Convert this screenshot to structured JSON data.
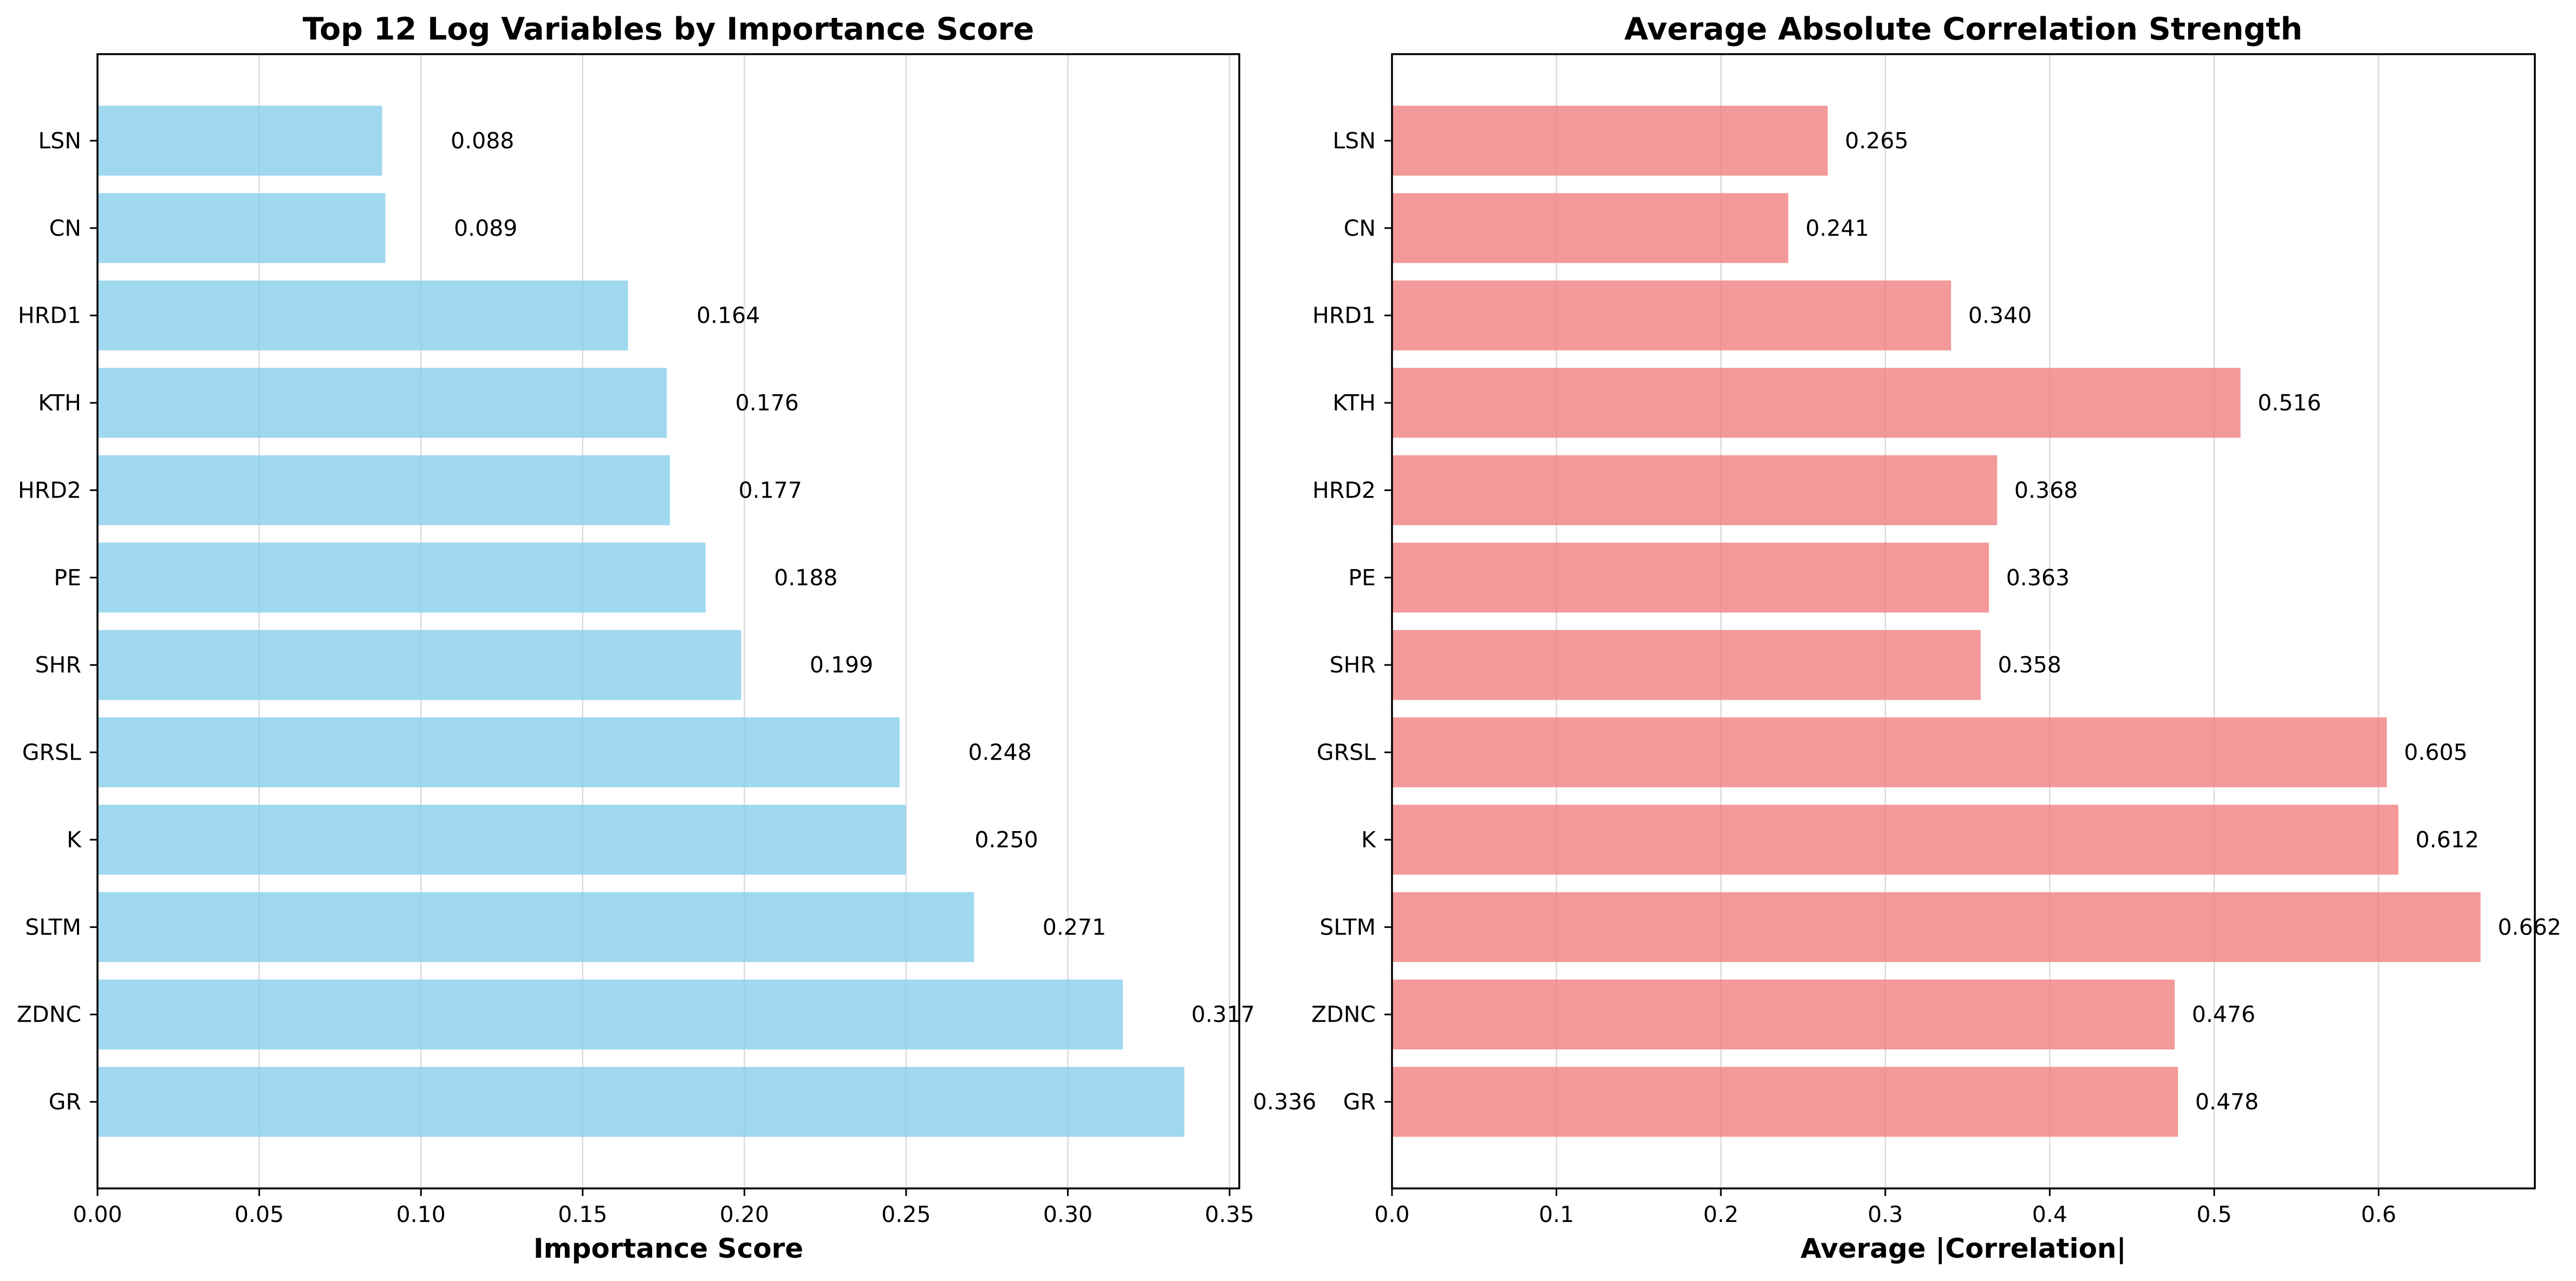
{
  "chart_data": [
    {
      "type": "bar",
      "orientation": "horizontal",
      "title": "Top 12 Log Variables by Importance Score",
      "xlabel": "Importance Score",
      "ylabel": "",
      "categories": [
        "GR",
        "ZDNC",
        "SLTM",
        "K",
        "GRSL",
        "SHR",
        "PE",
        "HRD2",
        "KTH",
        "HRD1",
        "CN",
        "LSN"
      ],
      "values": [
        0.336,
        0.317,
        0.271,
        0.25,
        0.248,
        0.199,
        0.188,
        0.177,
        0.176,
        0.164,
        0.089,
        0.088
      ],
      "value_labels": [
        "0.336",
        "0.317",
        "0.271",
        "0.250",
        "0.248",
        "0.199",
        "0.188",
        "0.177",
        "0.176",
        "0.164",
        "0.089",
        "0.088"
      ],
      "xlim": [
        0,
        0.353
      ],
      "xticks": [
        0,
        0.05,
        0.1,
        0.15,
        0.2,
        0.25,
        0.3,
        0.35
      ],
      "xtick_labels": [
        "0.00",
        "0.05",
        "0.10",
        "0.15",
        "0.20",
        "0.25",
        "0.30",
        "0.35"
      ],
      "bar_color": "#87ceeb",
      "grid": "x"
    },
    {
      "type": "bar",
      "orientation": "horizontal",
      "title": "Average Absolute Correlation Strength",
      "xlabel": "Average |Correlation|",
      "ylabel": "",
      "categories": [
        "GR",
        "ZDNC",
        "SLTM",
        "K",
        "GRSL",
        "SHR",
        "PE",
        "HRD2",
        "KTH",
        "HRD1",
        "CN",
        "LSN"
      ],
      "values": [
        0.478,
        0.476,
        0.662,
        0.612,
        0.605,
        0.358,
        0.363,
        0.368,
        0.516,
        0.34,
        0.241,
        0.265
      ],
      "value_labels": [
        "0.478",
        "0.476",
        "0.662",
        "0.612",
        "0.605",
        "0.358",
        "0.363",
        "0.368",
        "0.516",
        "0.340",
        "0.241",
        "0.265"
      ],
      "xlim": [
        0,
        0.695
      ],
      "xticks": [
        0,
        0.1,
        0.2,
        0.3,
        0.4,
        0.5,
        0.6
      ],
      "xtick_labels": [
        "0.0",
        "0.1",
        "0.2",
        "0.3",
        "0.4",
        "0.5",
        "0.6"
      ],
      "bar_color": "#f08080",
      "grid": "x"
    }
  ]
}
